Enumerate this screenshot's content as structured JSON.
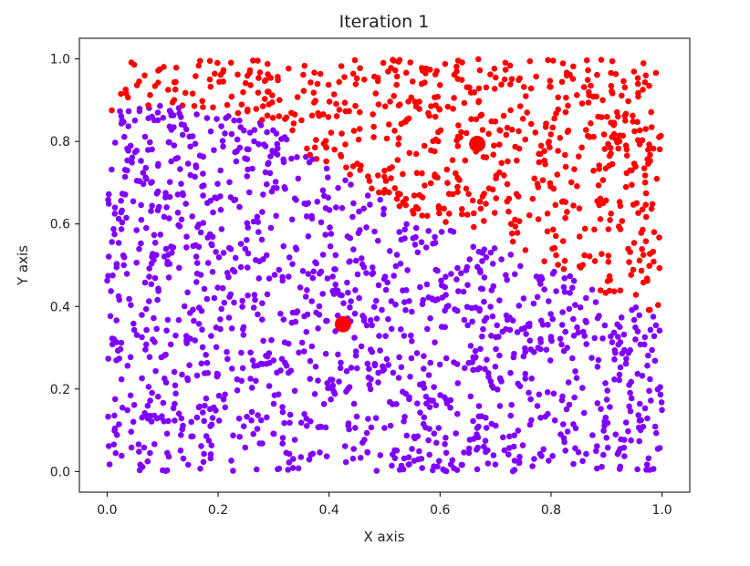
{
  "chart_data": {
    "type": "scatter",
    "title": "Iteration 1",
    "xlabel": "X axis",
    "ylabel": "Y axis",
    "xlim": [
      -0.05,
      1.05
    ],
    "ylim": [
      -0.05,
      1.05
    ],
    "xticks": [
      "0.0",
      "0.2",
      "0.4",
      "0.6",
      "0.8",
      "1.0"
    ],
    "yticks": [
      "0.0",
      "0.2",
      "0.4",
      "0.6",
      "0.8",
      "1.0"
    ],
    "grid": false,
    "legend": "none",
    "point_count_approx": 2000,
    "clusters": [
      {
        "color": "#8000ff",
        "region": "lower-left",
        "boundary_polyline": [
          [
            0.0,
            0.87
          ],
          [
            0.1,
            0.89
          ],
          [
            0.2,
            0.87
          ],
          [
            0.3,
            0.84
          ],
          [
            0.38,
            0.75
          ],
          [
            0.45,
            0.69
          ],
          [
            0.52,
            0.64
          ],
          [
            0.6,
            0.59
          ],
          [
            0.7,
            0.56
          ],
          [
            0.8,
            0.5
          ],
          [
            0.88,
            0.44
          ],
          [
            0.95,
            0.4
          ],
          [
            1.0,
            0.38
          ]
        ]
      },
      {
        "color": "#ff0000",
        "region": "upper-right",
        "boundary_polyline": [
          [
            0.0,
            0.87
          ],
          [
            0.1,
            0.89
          ],
          [
            0.2,
            0.87
          ],
          [
            0.3,
            0.84
          ],
          [
            0.38,
            0.75
          ],
          [
            0.45,
            0.69
          ],
          [
            0.52,
            0.64
          ],
          [
            0.6,
            0.59
          ],
          [
            0.7,
            0.56
          ],
          [
            0.8,
            0.5
          ],
          [
            0.88,
            0.44
          ],
          [
            0.95,
            0.4
          ],
          [
            1.0,
            0.38
          ]
        ]
      }
    ],
    "centroids": [
      {
        "x": 0.425,
        "y": 0.357,
        "color": "#ff0000"
      },
      {
        "x": 0.667,
        "y": 0.794,
        "color": "#ff0000"
      }
    ]
  }
}
